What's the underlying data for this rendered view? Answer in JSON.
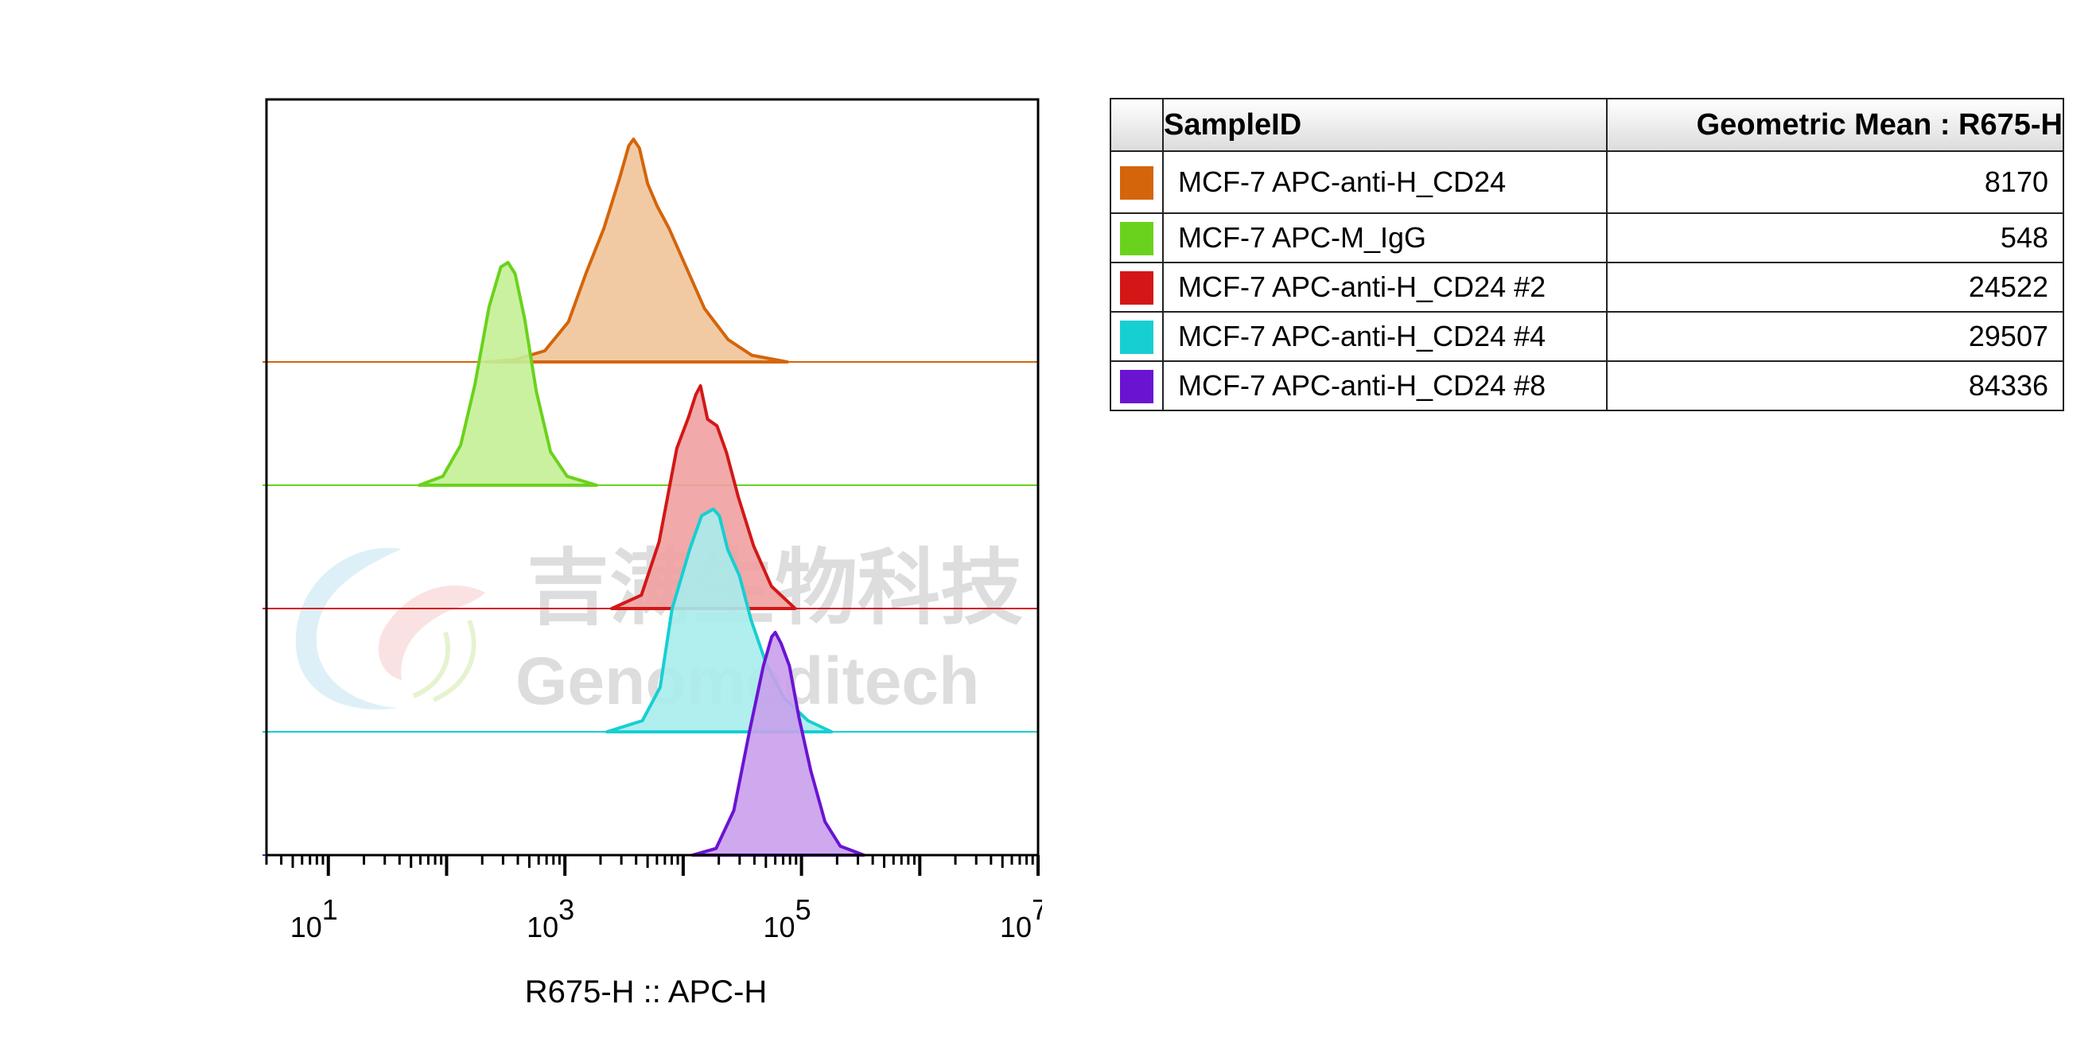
{
  "chart_data": {
    "type": "histogram",
    "subtype": "flow-cytometry-overlay",
    "xlabel": "R675-H :: APC-H",
    "xscale": "log",
    "xlim": [
      3,
      10000000
    ],
    "x_ticks": [
      {
        "value": 10,
        "base": "10",
        "exp": "1"
      },
      {
        "value": 1000,
        "base": "10",
        "exp": "3"
      },
      {
        "value": 100000,
        "base": "10",
        "exp": "5"
      },
      {
        "value": 10000000,
        "base": "10",
        "exp": "7"
      }
    ],
    "series": [
      {
        "name": "MCF-7 APC-anti-H_CD24",
        "color": "#d4650a",
        "fill": "#f0c49a",
        "offset": 4,
        "peak_x": 3800,
        "peak_height": 1.0,
        "shape": [
          [
            -1.25,
            0
          ],
          [
            -1.0,
            0.01
          ],
          [
            -0.75,
            0.05
          ],
          [
            -0.55,
            0.18
          ],
          [
            -0.4,
            0.4
          ],
          [
            -0.25,
            0.6
          ],
          [
            -0.12,
            0.82
          ],
          [
            -0.04,
            0.97
          ],
          [
            0,
            1.0
          ],
          [
            0.05,
            0.96
          ],
          [
            0.12,
            0.8
          ],
          [
            0.2,
            0.7
          ],
          [
            0.3,
            0.6
          ],
          [
            0.45,
            0.42
          ],
          [
            0.6,
            0.24
          ],
          [
            0.8,
            0.1
          ],
          [
            1.0,
            0.03
          ],
          [
            1.3,
            0
          ]
        ]
      },
      {
        "name": "MCF-7 APC-M_IgG",
        "color": "#6ad21c",
        "fill": "#c4f096",
        "offset": 3,
        "peak_x": 330,
        "peak_height": 1.0,
        "shape": [
          [
            -0.75,
            0
          ],
          [
            -0.55,
            0.04
          ],
          [
            -0.4,
            0.18
          ],
          [
            -0.28,
            0.45
          ],
          [
            -0.16,
            0.8
          ],
          [
            -0.06,
            0.98
          ],
          [
            0,
            1.0
          ],
          [
            0.06,
            0.95
          ],
          [
            0.14,
            0.75
          ],
          [
            0.24,
            0.42
          ],
          [
            0.36,
            0.15
          ],
          [
            0.5,
            0.04
          ],
          [
            0.75,
            0
          ]
        ]
      },
      {
        "name": "MCF-7 APC-anti-H_CD24 #2",
        "color": "#d31717",
        "fill": "#f0a0a0",
        "offset": 2,
        "peak_x": 14000,
        "peak_height": 1.0,
        "shape": [
          [
            -0.75,
            0
          ],
          [
            -0.5,
            0.06
          ],
          [
            -0.35,
            0.3
          ],
          [
            -0.2,
            0.72
          ],
          [
            -0.1,
            0.86
          ],
          [
            -0.04,
            0.96
          ],
          [
            0,
            1.0
          ],
          [
            0.06,
            0.85
          ],
          [
            0.14,
            0.82
          ],
          [
            0.22,
            0.7
          ],
          [
            0.32,
            0.5
          ],
          [
            0.45,
            0.28
          ],
          [
            0.6,
            0.1
          ],
          [
            0.8,
            0
          ]
        ]
      },
      {
        "name": "MCF-7 APC-anti-H_CD24 #4",
        "color": "#16cfd2",
        "fill": "#a8ecec",
        "offset": 1,
        "peak_x": 18000,
        "peak_height": 1.0,
        "shape": [
          [
            -0.9,
            0
          ],
          [
            -0.6,
            0.05
          ],
          [
            -0.45,
            0.2
          ],
          [
            -0.35,
            0.55
          ],
          [
            -0.2,
            0.82
          ],
          [
            -0.1,
            0.97
          ],
          [
            0,
            1.0
          ],
          [
            0.05,
            0.97
          ],
          [
            0.12,
            0.82
          ],
          [
            0.22,
            0.7
          ],
          [
            0.32,
            0.5
          ],
          [
            0.45,
            0.3
          ],
          [
            0.6,
            0.15
          ],
          [
            0.8,
            0.05
          ],
          [
            1.0,
            0
          ]
        ]
      },
      {
        "name": "MCF-7 APC-anti-H_CD24 #8",
        "color": "#6a14d2",
        "fill": "#c9a0ec",
        "offset": 0,
        "peak_x": 60000,
        "peak_height": 1.0,
        "shape": [
          [
            -0.7,
            0
          ],
          [
            -0.5,
            0.03
          ],
          [
            -0.35,
            0.2
          ],
          [
            -0.22,
            0.55
          ],
          [
            -0.1,
            0.85
          ],
          [
            -0.03,
            0.98
          ],
          [
            0,
            1.0
          ],
          [
            0.05,
            0.95
          ],
          [
            0.12,
            0.85
          ],
          [
            0.2,
            0.62
          ],
          [
            0.3,
            0.38
          ],
          [
            0.42,
            0.15
          ],
          [
            0.55,
            0.04
          ],
          [
            0.75,
            0
          ]
        ]
      }
    ]
  },
  "watermark": {
    "line1": "吉满生物科技",
    "line2": "Genomeditech"
  },
  "table": {
    "col_sample": "SampleID",
    "col_value": "Geometric Mean : R675-H",
    "rows": [
      {
        "color": "#d4650a",
        "name": "MCF-7 APC-anti-H_CD24",
        "value": "8170"
      },
      {
        "color": "#6ad21c",
        "name": "MCF-7 APC-M_IgG",
        "value": "548"
      },
      {
        "color": "#d31717",
        "name": "MCF-7 APC-anti-H_CD24 #2",
        "value": "24522"
      },
      {
        "color": "#16cfd2",
        "name": "MCF-7 APC-anti-H_CD24 #4",
        "value": "29507"
      },
      {
        "color": "#6a14d2",
        "name": "MCF-7 APC-anti-H_CD24 #8",
        "value": "84336"
      }
    ]
  }
}
